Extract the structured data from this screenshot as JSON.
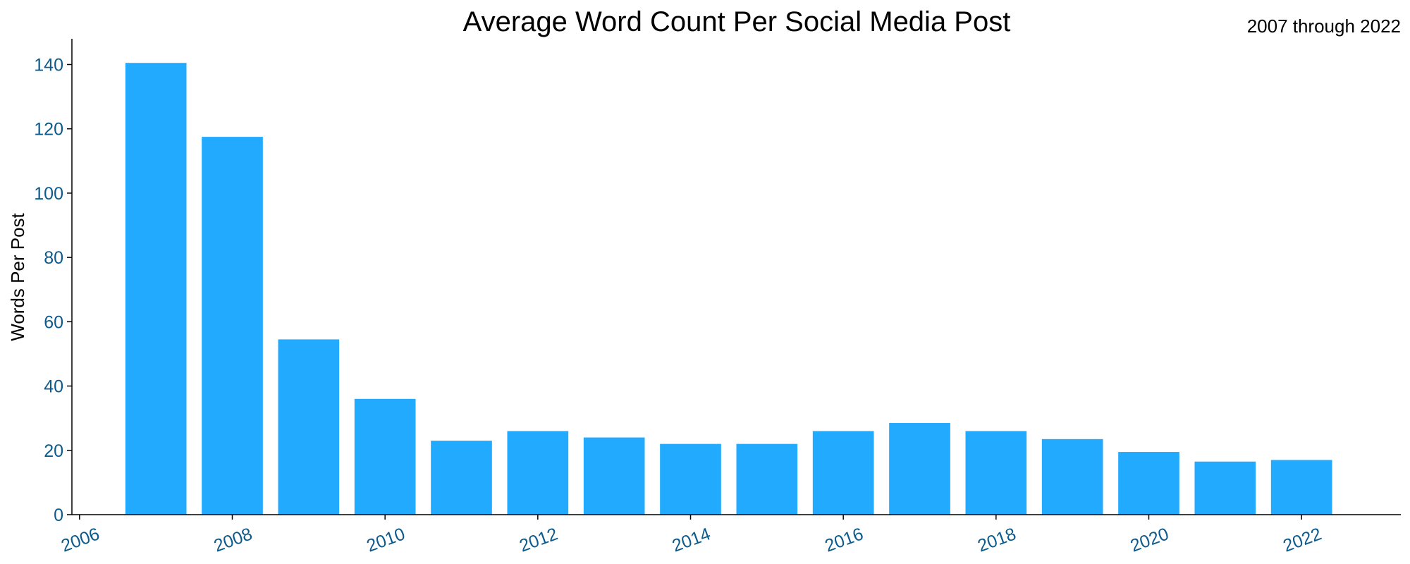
{
  "chart_data": {
    "type": "bar",
    "title": "Average Word Count Per Social Media Post",
    "subtitle": "2007 through 2022",
    "xlabel": "",
    "ylabel": "Words Per Post",
    "x": [
      2007,
      2008,
      2009,
      2010,
      2011,
      2012,
      2013,
      2014,
      2015,
      2016,
      2017,
      2018,
      2019,
      2020,
      2021,
      2022
    ],
    "values": [
      140.5,
      117.5,
      54.5,
      36,
      23,
      26,
      24,
      22,
      22,
      26,
      28.5,
      26,
      23.5,
      19.5,
      16.5,
      17
    ],
    "xlim": [
      2005.9,
      2023.3
    ],
    "ylim": [
      0,
      148
    ],
    "xticks": [
      2006,
      2008,
      2010,
      2012,
      2014,
      2016,
      2018,
      2020,
      2022
    ],
    "yticks": [
      0,
      20,
      40,
      60,
      80,
      100,
      120,
      140
    ],
    "bar_color": "#22aaff",
    "tick_label_color": "#0d5a8c",
    "grid": false,
    "legend": "none"
  }
}
